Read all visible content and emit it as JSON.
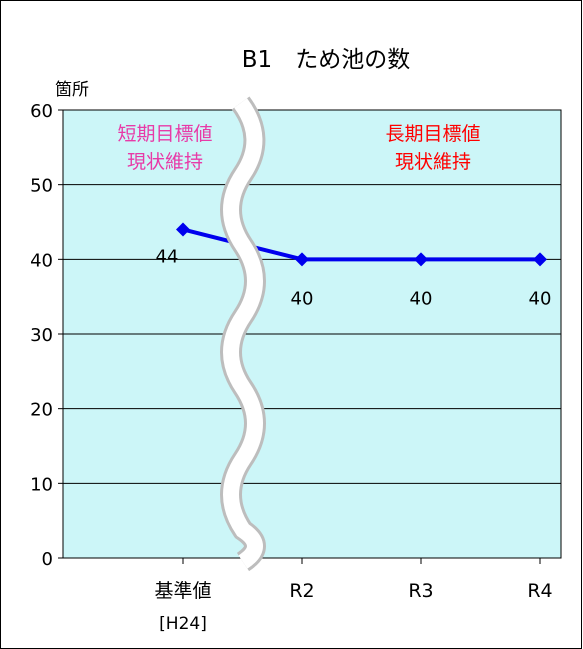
{
  "chart_data": {
    "type": "line",
    "title": "B1　ため池の数",
    "ylabel": "箇所",
    "xlabel": "",
    "ylim": [
      0,
      60
    ],
    "yticks": [
      0,
      10,
      20,
      30,
      40,
      50,
      60
    ],
    "grid": true,
    "categories": [
      "基準値",
      "R2",
      "R3",
      "R4"
    ],
    "category_sublabels": [
      "[H24]",
      "",
      "",
      ""
    ],
    "series": [
      {
        "values": [
          44,
          40,
          40,
          40
        ],
        "data_labels": [
          "44",
          "40",
          "40",
          "40"
        ]
      }
    ],
    "annotations": [
      {
        "line1": "短期目標値",
        "line2": "現状維持",
        "color": "#e83aa7"
      },
      {
        "line1": "長期目標値",
        "line2": "現状維持",
        "color": "#ff0000"
      }
    ],
    "axis_break": true
  },
  "colors": {
    "plot_background": "#ccf6f8",
    "line": "#0000ee",
    "grid": "#000000"
  }
}
